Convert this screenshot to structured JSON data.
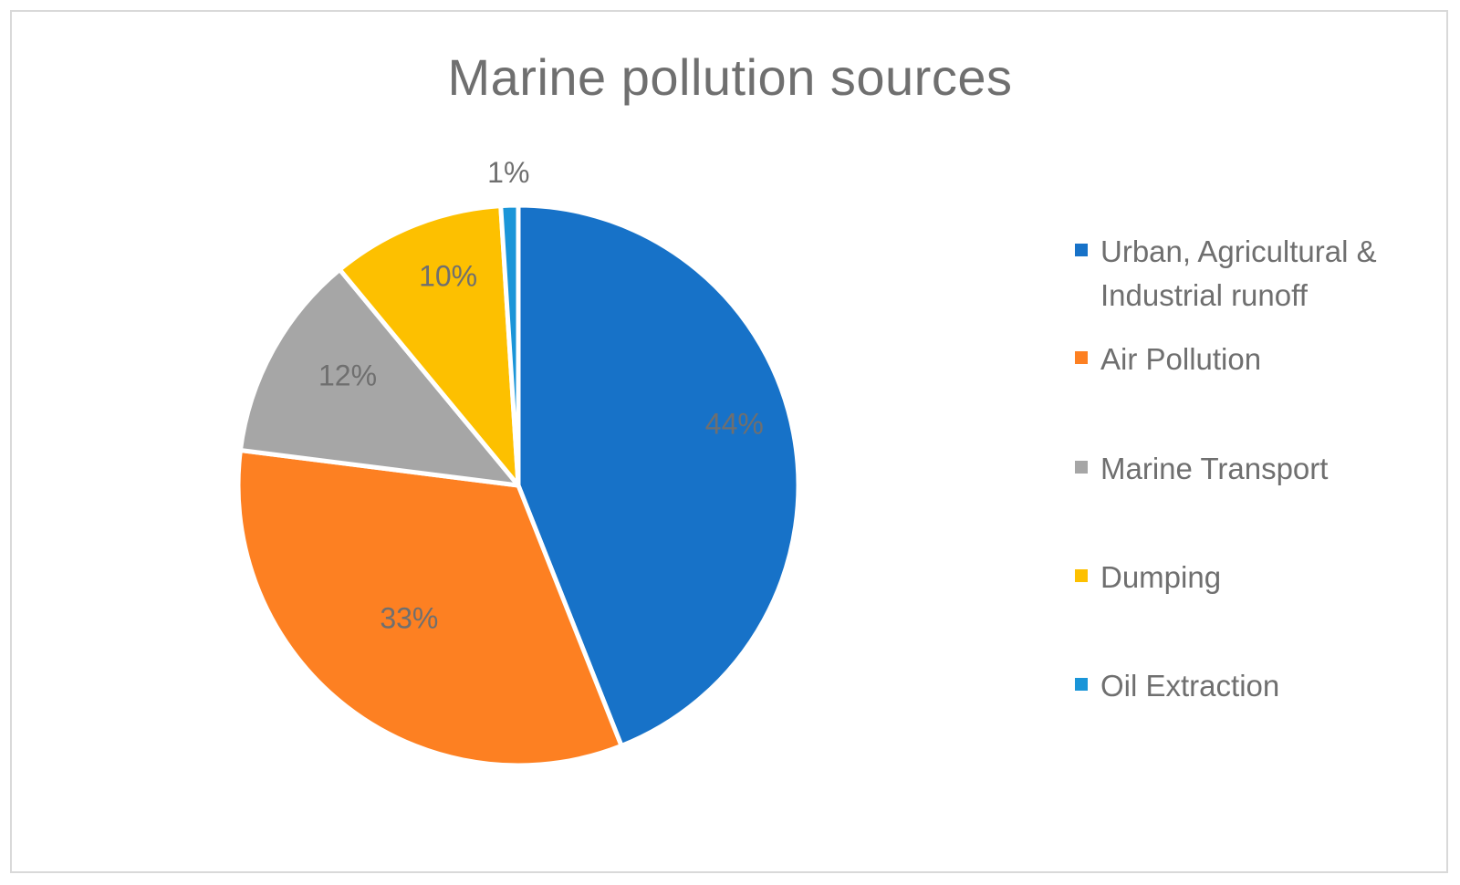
{
  "chart_data": {
    "type": "pie",
    "title": "Marine pollution sources",
    "categories": [
      "Urban, Agricultural & Industrial runoff",
      "Air Pollution",
      "Marine Transport",
      "Dumping",
      "Oil Extraction"
    ],
    "values": [
      44,
      33,
      12,
      10,
      1
    ],
    "data_labels": [
      "44%",
      "33%",
      "12%",
      "10%",
      "1%"
    ],
    "colors": [
      "#1772c8",
      "#fd8022",
      "#a6a6a6",
      "#fdc000",
      "#1a95d8"
    ],
    "legend_position": "right",
    "start_angle": "top, clockwise"
  }
}
